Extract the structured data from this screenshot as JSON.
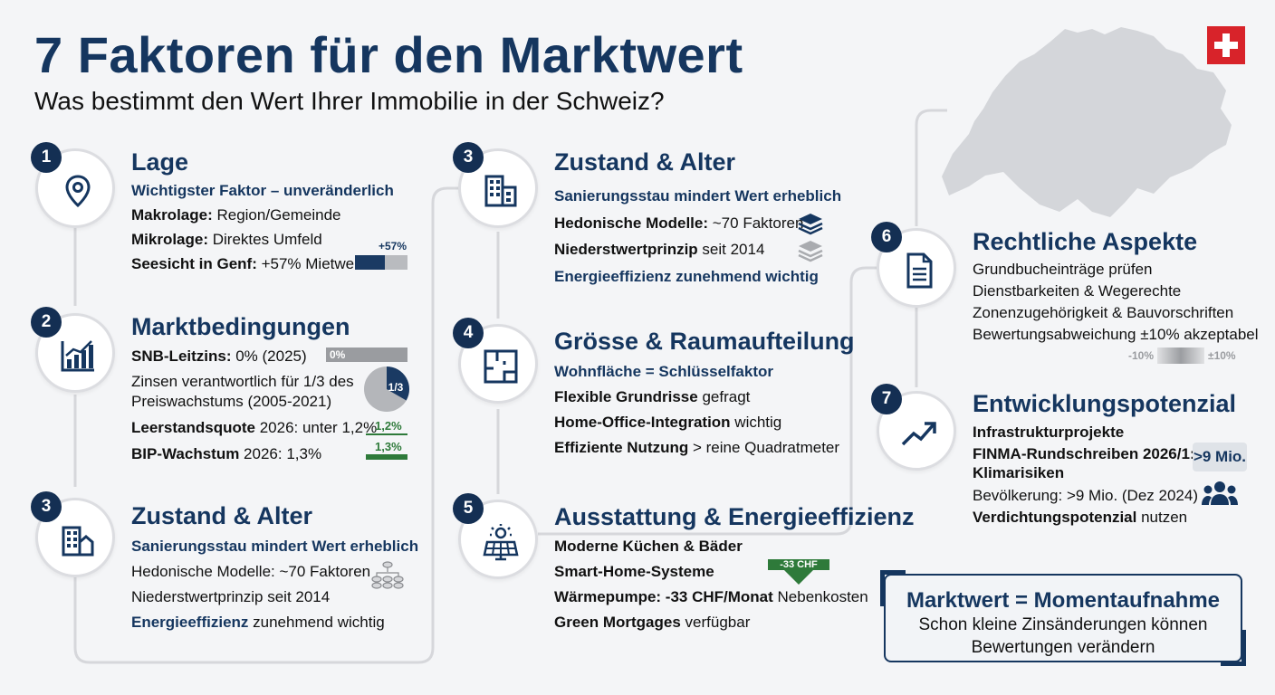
{
  "header": {
    "title": "7 Faktoren für den Marktwert",
    "subtitle": "Was bestimmt den Wert Ihrer Immobilie in der Schweiz?"
  },
  "icons": {
    "flag": "swiss-flag-icon",
    "map": "switzerland-map-icon",
    "f1": "location-pin-icon",
    "f2": "bar-chart-growth-icon",
    "f3": "buildings-icon",
    "f4": "floor-plan-icon",
    "f5": "solar-panel-icon",
    "f6": "document-icon",
    "f7": "trend-up-arrow-icon"
  },
  "colors": {
    "navy": "#15365f",
    "green": "#2e7a3a",
    "red": "#d8232a",
    "grey": "#b9bbbf"
  },
  "factors": {
    "f1": {
      "number": "1",
      "title": "Lage",
      "subtitle": "Wichtigster Faktor – unveränderlich",
      "l1b": "Makrolage:",
      "l1": " Region/Gemeinde",
      "l2b": "Mikrolage:",
      "l2": " Direktes Umfeld",
      "l3b": "Seesicht in Genf:",
      "l3": " +57% Mietwert",
      "bar_label": "+57%",
      "bar_value": 0.57
    },
    "f2": {
      "number": "2",
      "title": "Marktbedingungen",
      "l1b": "SNB-Leitzins:",
      "l1": " 0% (2025)",
      "bar_label": "0%",
      "l2a": "Zinsen verantwortlich für 1/3 des",
      "l2b": "Preiswachstums (2005-2021)",
      "pie_label": "1/3",
      "pie_value": 0.3333,
      "l3b": "Leerstandsquote",
      "l3": " 2026: unter 1,2%",
      "v1": "1,2%",
      "l4b": "BIP-Wachstum",
      "l4": " 2026: 1,3%",
      "v2": "1,3%"
    },
    "f3": {
      "number": "3",
      "title": "Zustand & Alter",
      "subtitle": "Sanierungsstau mindert Wert erheblich",
      "l1": "Hedonische Modelle: ~70 Faktoren",
      "l2": "Niederstwertprinzip seit 2014",
      "l3b": "Energieeffizienz",
      "l3": " zunehmend wichtig"
    },
    "f3b": {
      "number": "3",
      "title": "Zustand & Alter",
      "subtitle": "Sanierungsstau mindert Wert erheblich",
      "l1b": "Hedonische Modelle:",
      "l1": " ~70 Faktoren",
      "l2b": "Niederstwertprinzip",
      "l2": " seit 2014",
      "l3": "Energieeffizienz zunehmend wichtig"
    },
    "f4": {
      "number": "4",
      "title": "Grösse & Raumaufteilung",
      "subtitle": "Wohnfläche = Schlüsselfaktor",
      "l1b": "Flexible Grundrisse",
      "l1": " gefragt",
      "l2b": "Home-Office-Integration",
      "l2": " wichtig",
      "l3b": "Effiziente Nutzung",
      "l3": " > reine Quadratmeter"
    },
    "f5": {
      "number": "5",
      "title": "Ausstattung & Energieeffizienz",
      "l1": "Moderne Küchen & Bäder",
      "l2": "Smart-Home-Systeme",
      "l3b": "Wärmepumpe: -33 CHF/Monat",
      "l3": " Nebenkosten",
      "l4b": "Green Mortgages",
      "l4": " verfügbar",
      "arrow_label": "-33 CHF"
    },
    "f6": {
      "number": "6",
      "title": "Rechtliche Aspekte",
      "l1": "Grundbucheinträge prüfen",
      "l2": "Dienstbarkeiten & Wegerechte",
      "l3": "Zonenzugehörigkeit & Bauvorschriften",
      "l4": "Bewertungsabweichung ±10% akzeptabel",
      "range_min": "-10%",
      "range_max": "±10%"
    },
    "f7": {
      "number": "7",
      "title": "Entwicklungspotenzial",
      "l1": "Infrastrukturprojekte",
      "l2": "FINMA-Rundschreiben 2026/1:",
      "l3": "Klimarisiken",
      "l4": "Bevölkerung: >9 Mio. (Dez 2024)",
      "l5b": "Verdichtungspotenzial",
      "l5": " nutzen",
      "badge": ">9 Mio."
    }
  },
  "callout": {
    "title": "Marktwert = Momentaufnahme",
    "line1": "Schon kleine Zinsänderungen können",
    "line2": "Bewertungen verändern"
  }
}
